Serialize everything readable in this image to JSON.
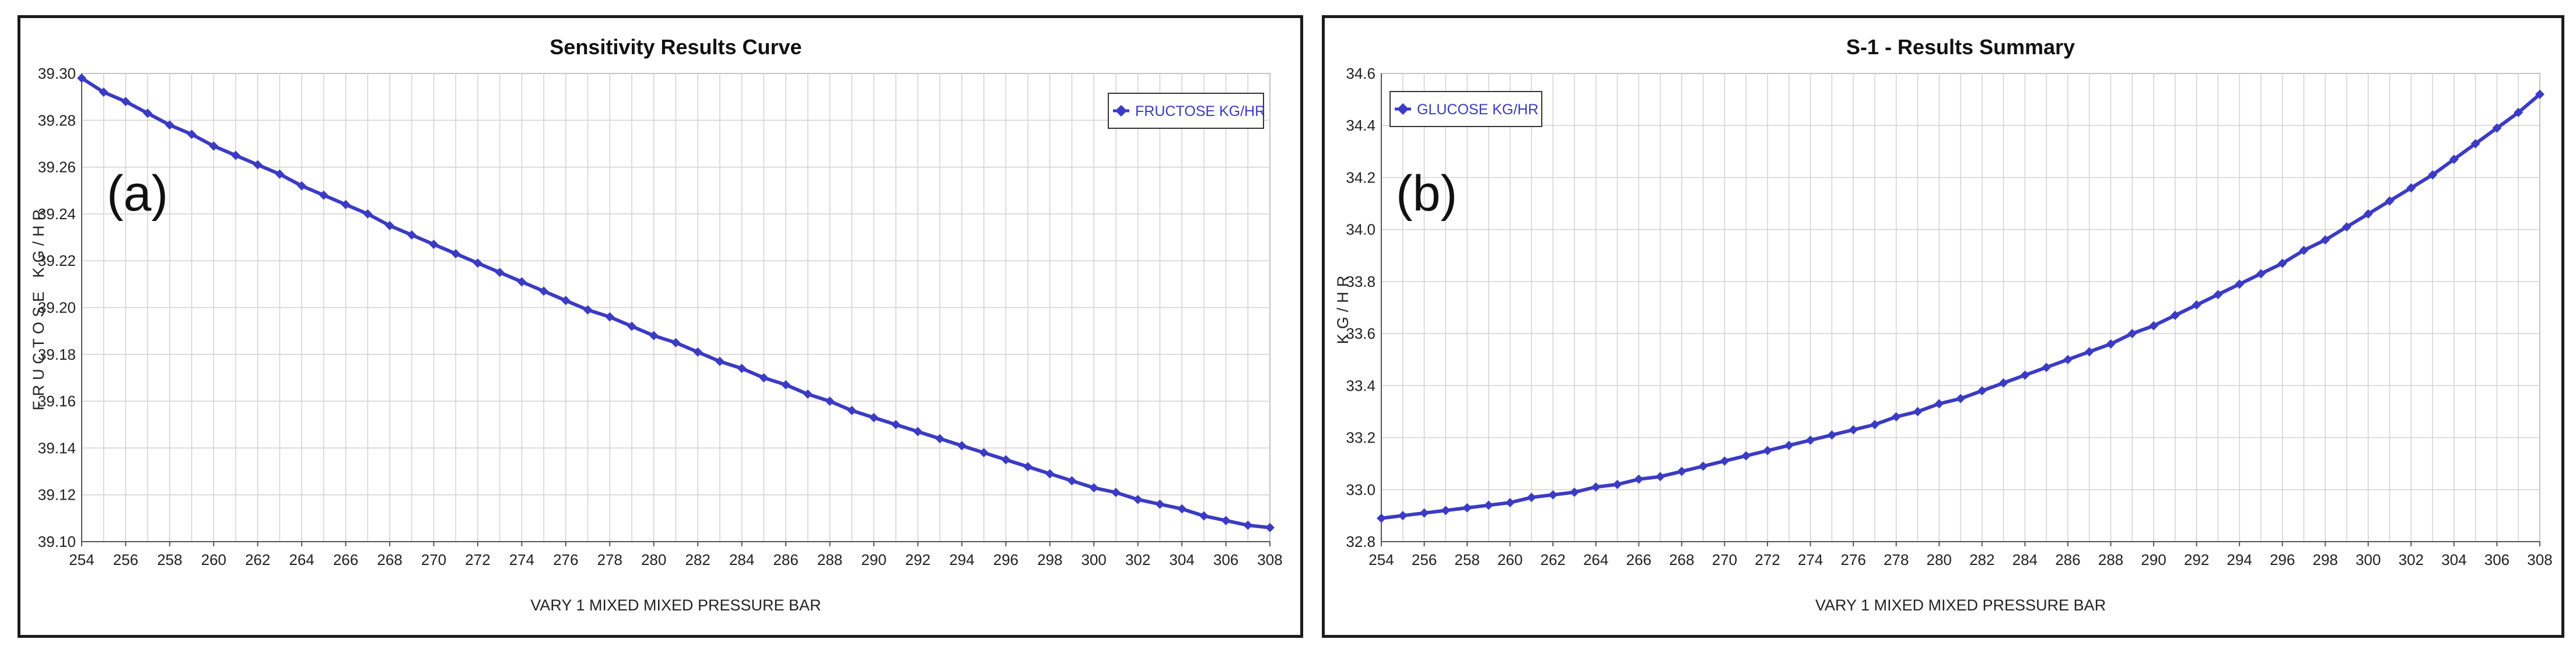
{
  "chart_data": [
    {
      "type": "line",
      "panel_label": "(a)",
      "title": "Sensitivity Results Curve",
      "xlabel": "VARY  1 MIXED MIXED PRESSURE BAR",
      "ylabel": "FRUCTOSE KG/HR",
      "xlim": [
        254,
        308
      ],
      "ylim": [
        39.1,
        39.3
      ],
      "x_ticks": [
        "254",
        "256",
        "258",
        "260",
        "262",
        "264",
        "266",
        "268",
        "270",
        "272",
        "274",
        "276",
        "278",
        "280",
        "282",
        "284",
        "286",
        "288",
        "290",
        "292",
        "294",
        "296",
        "298",
        "300",
        "302",
        "304",
        "306",
        "308"
      ],
      "y_ticks": [
        "39.10",
        "39.12",
        "39.14",
        "39.16",
        "39.18",
        "39.20",
        "39.22",
        "39.24",
        "39.26",
        "39.28",
        "39.30"
      ],
      "grid": true,
      "legend_position": "top-right",
      "series": [
        {
          "name": "FRUCTOSE KG/HR",
          "color": "#3b3bc4",
          "x": [
            254,
            255,
            256,
            257,
            258,
            259,
            260,
            261,
            262,
            263,
            264,
            265,
            266,
            267,
            268,
            269,
            270,
            271,
            272,
            273,
            274,
            275,
            276,
            277,
            278,
            279,
            280,
            281,
            282,
            283,
            284,
            285,
            286,
            287,
            288,
            289,
            290,
            291,
            292,
            293,
            294,
            295,
            296,
            297,
            298,
            299,
            300,
            301,
            302,
            303,
            304,
            305,
            306,
            307,
            308
          ],
          "values": [
            39.298,
            39.292,
            39.288,
            39.283,
            39.278,
            39.274,
            39.269,
            39.265,
            39.261,
            39.257,
            39.252,
            39.248,
            39.244,
            39.24,
            39.235,
            39.231,
            39.227,
            39.223,
            39.219,
            39.215,
            39.211,
            39.207,
            39.203,
            39.199,
            39.196,
            39.192,
            39.188,
            39.185,
            39.181,
            39.177,
            39.174,
            39.17,
            39.167,
            39.163,
            39.16,
            39.156,
            39.153,
            39.15,
            39.147,
            39.144,
            39.141,
            39.138,
            39.135,
            39.132,
            39.129,
            39.126,
            39.123,
            39.121,
            39.118,
            39.116,
            39.114,
            39.111,
            39.109,
            39.107,
            39.106
          ]
        }
      ]
    },
    {
      "type": "line",
      "panel_label": "(b)",
      "title": "S-1 - Results Summary",
      "xlabel": "VARY  1 MIXED    MIXED    PRESSURE  BAR",
      "ylabel": "KG/HR",
      "xlim": [
        254,
        308
      ],
      "ylim": [
        32.8,
        34.6
      ],
      "x_ticks": [
        "254",
        "256",
        "258",
        "260",
        "262",
        "264",
        "266",
        "268",
        "270",
        "272",
        "274",
        "276",
        "278",
        "280",
        "282",
        "284",
        "286",
        "288",
        "290",
        "292",
        "294",
        "296",
        "298",
        "300",
        "302",
        "304",
        "306",
        "308"
      ],
      "y_ticks": [
        "32.8",
        "33.0",
        "33.2",
        "33.4",
        "33.6",
        "33.8",
        "34.0",
        "34.2",
        "34.4",
        "34.6"
      ],
      "grid": true,
      "legend_position": "top-left",
      "series": [
        {
          "name": "GLUCOSE     KG/HR",
          "color": "#3b3bc4",
          "x": [
            254,
            255,
            256,
            257,
            258,
            259,
            260,
            261,
            262,
            263,
            264,
            265,
            266,
            267,
            268,
            269,
            270,
            271,
            272,
            273,
            274,
            275,
            276,
            277,
            278,
            279,
            280,
            281,
            282,
            283,
            284,
            285,
            286,
            287,
            288,
            289,
            290,
            291,
            292,
            293,
            294,
            295,
            296,
            297,
            298,
            299,
            300,
            301,
            302,
            303,
            304,
            305,
            306,
            307,
            308
          ],
          "values": [
            32.89,
            32.9,
            32.91,
            32.92,
            32.93,
            32.94,
            32.95,
            32.97,
            32.98,
            32.99,
            33.01,
            33.02,
            33.04,
            33.05,
            33.07,
            33.09,
            33.11,
            33.13,
            33.15,
            33.17,
            33.19,
            33.21,
            33.23,
            33.25,
            33.28,
            33.3,
            33.33,
            33.35,
            33.38,
            33.41,
            33.44,
            33.47,
            33.5,
            33.53,
            33.56,
            33.6,
            33.63,
            33.67,
            33.71,
            33.75,
            33.79,
            33.83,
            33.87,
            33.92,
            33.96,
            34.01,
            34.06,
            34.11,
            34.16,
            34.21,
            34.27,
            34.33,
            34.39,
            34.45,
            34.52
          ]
        }
      ]
    }
  ]
}
